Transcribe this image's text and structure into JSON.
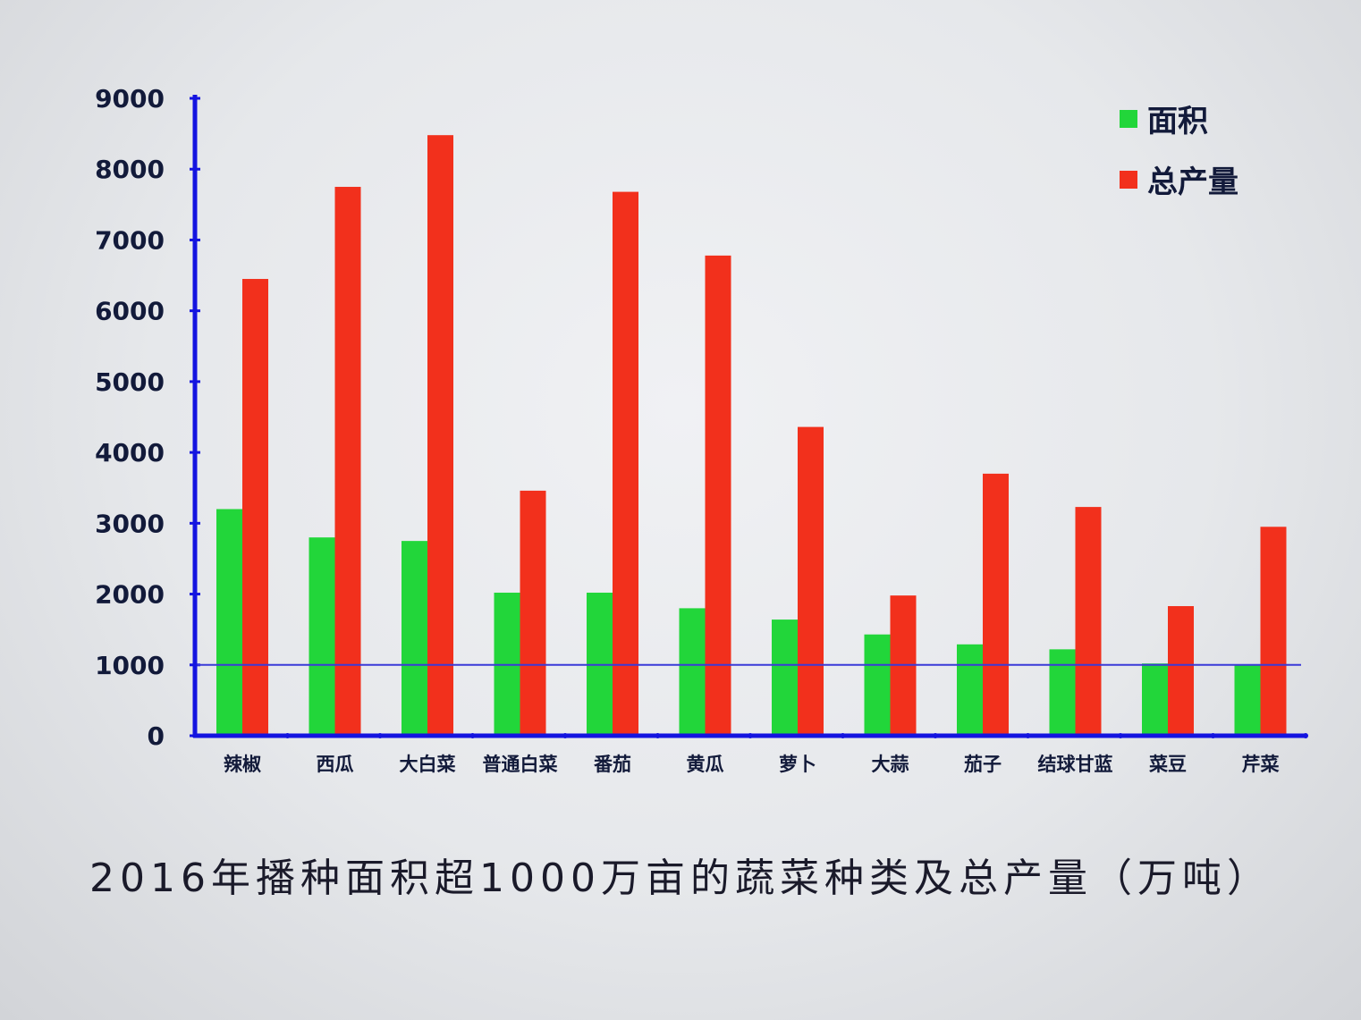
{
  "chart_data": {
    "type": "bar",
    "title": "2016年播种面积超1000万亩的蔬菜种类及总产量（万吨）",
    "categories": [
      "辣椒",
      "西瓜",
      "大白菜",
      "普通白菜",
      "番茄",
      "黄瓜",
      "萝卜",
      "大蒜",
      "茄子",
      "结球甘蓝",
      "菜豆",
      "芹菜"
    ],
    "series": [
      {
        "name": "面积",
        "color": "#22d63a",
        "values": [
          3200,
          2800,
          2750,
          2020,
          2020,
          1800,
          1640,
          1430,
          1290,
          1220,
          1020,
          1000
        ]
      },
      {
        "name": "总产量",
        "color": "#f2301c",
        "values": [
          6450,
          7750,
          8480,
          3460,
          7680,
          6780,
          4360,
          1980,
          3700,
          3230,
          1830,
          2950
        ]
      }
    ],
    "yticks": [
      "0",
      "1000",
      "2000",
      "3000",
      "4000",
      "5000",
      "6000",
      "7000",
      "8000",
      "9000"
    ],
    "ylim": [
      0,
      9000
    ],
    "reference_line": {
      "value": 1000,
      "color": "#3a3ad8"
    },
    "axis_color": "#1414e0",
    "legend_position": "top-right",
    "xlabel": "",
    "ylabel": ""
  }
}
